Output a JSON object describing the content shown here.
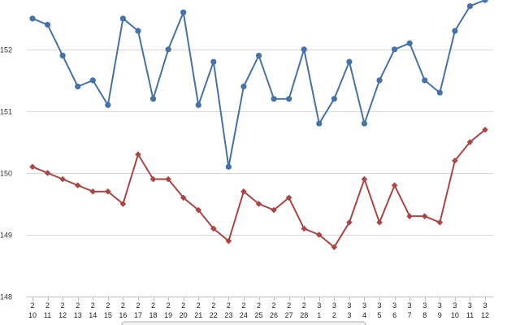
{
  "chart_data": {
    "type": "line",
    "x_top": [
      "2",
      "2",
      "2",
      "2",
      "2",
      "2",
      "2",
      "2",
      "2",
      "2",
      "2",
      "2",
      "2",
      "2",
      "2",
      "2",
      "2",
      "2",
      "2",
      "3",
      "3",
      "3",
      "3",
      "3",
      "3",
      "3",
      "3",
      "3",
      "3",
      "3",
      "3"
    ],
    "x_bottom": [
      "10",
      "11",
      "12",
      "13",
      "14",
      "15",
      "16",
      "17",
      "18",
      "19",
      "20",
      "21",
      "22",
      "23",
      "24",
      "25",
      "26",
      "27",
      "28",
      "1",
      "2",
      "3",
      "4",
      "5",
      "6",
      "7",
      "8",
      "9",
      "10",
      "11",
      "12"
    ],
    "ylim": [
      148,
      152.8
    ],
    "yticks": [
      148,
      149,
      150,
      151,
      152
    ],
    "grid": true,
    "series": [
      {
        "color": "#4572a7",
        "marker": "circle",
        "values": [
          152.5,
          152.4,
          151.9,
          151.4,
          151.5,
          151.1,
          152.5,
          152.3,
          151.2,
          152.0,
          152.6,
          151.1,
          151.8,
          150.1,
          151.4,
          151.9,
          151.2,
          151.2,
          152.0,
          150.8,
          151.2,
          151.8,
          150.8,
          151.5,
          152.0,
          152.1,
          151.5,
          151.3,
          152.3,
          152.7,
          152.8
        ]
      },
      {
        "color": "#aa4643",
        "marker": "diamond",
        "values": [
          150.1,
          150.0,
          149.9,
          149.8,
          149.7,
          149.7,
          149.5,
          150.3,
          149.9,
          149.9,
          149.6,
          149.4,
          149.1,
          148.9,
          149.7,
          149.5,
          149.4,
          149.6,
          149.1,
          149.0,
          148.8,
          149.2,
          149.9,
          149.2,
          149.8,
          149.3,
          149.3,
          149.2,
          150.2,
          150.5,
          150.7
        ]
      }
    ]
  }
}
